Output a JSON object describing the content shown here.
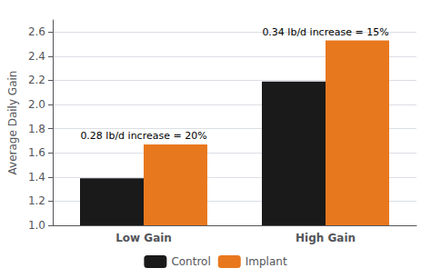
{
  "chart_data": {
    "type": "bar",
    "categories": [
      "Low Gain",
      "High Gain"
    ],
    "series": [
      {
        "name": "Control",
        "color": "#1a1a1a",
        "values": [
          1.39,
          2.19
        ]
      },
      {
        "name": "Implant",
        "color": "#E8781E",
        "values": [
          1.67,
          2.53
        ]
      }
    ],
    "ylabel": "Average Daily Gain",
    "ylim": [
      1.0,
      2.7
    ],
    "yticks": [
      {
        "value": 1.0,
        "label": "1.0"
      },
      1.2,
      1.4,
      1.6,
      1.8,
      {
        "value": 2.0,
        "label": "2.0"
      },
      2.2,
      2.4,
      2.6
    ],
    "annotations": [
      "0.28 lb/d increase = 20%",
      "0.34 lb/d increase = 15%"
    ],
    "grid": true,
    "legend": "bottom"
  }
}
